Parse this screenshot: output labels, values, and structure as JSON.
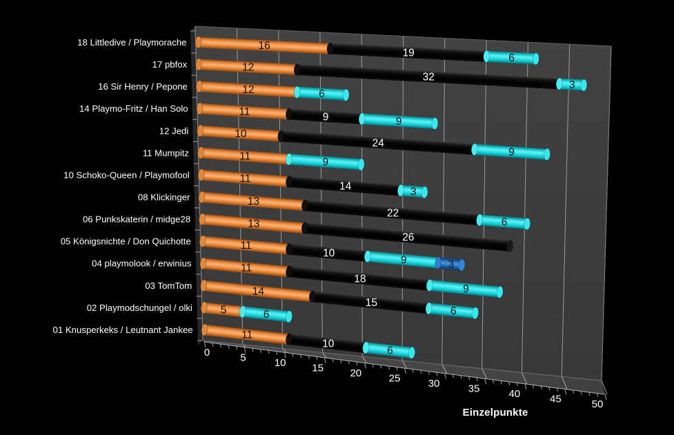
{
  "background": "#000000",
  "colors": {
    "wall": "#3d3d3d",
    "floor": "#474747",
    "gridline": "#a0a0a0",
    "edge_highlight": "#8f8f8f",
    "text": "#ffffff",
    "bar_orange": "#f79646",
    "bar_black": "#070707",
    "bar_cyan": "#2ee3e9",
    "bar_blue": "#2273c8"
  },
  "chart_data": {
    "type": "bar",
    "orientation": "horizontal",
    "stacked": true,
    "style": "3d-cylinder",
    "title": "",
    "xlabel": "Einzelpunkte",
    "ylabel": "",
    "xlim": [
      0,
      50
    ],
    "xticks": [
      0,
      5,
      10,
      15,
      20,
      25,
      30,
      35,
      40,
      45,
      50
    ],
    "minor_tick_step": 1,
    "grid": true,
    "legend": false,
    "categories": [
      "18 Littledive / Playmorache",
      "17 pbfox",
      "16 Sir Henry / Pepone",
      "14 Playmo-Fritz / Han Solo",
      "12 Jedi",
      "11 Mumpitz",
      "10 Schoko-Queen / Playmofool",
      "08 Klickinger",
      "06 Punkskaterin / midge28",
      "05 Königsnichte / Don Quichotte",
      "04 playmolook / erwinius",
      "03 TomTom",
      "02 Playmodschungel / olki",
      "01 Knusperkeks / Leutnant Jankee"
    ],
    "series": [
      {
        "name": "segment-1",
        "color": "orange",
        "label_color": "#101010",
        "values": [
          16,
          12,
          12,
          11,
          10,
          11,
          11,
          13,
          13,
          11,
          11,
          14,
          5,
          11
        ]
      },
      {
        "name": "segment-2",
        "color": "black",
        "label_color": "#ffffff",
        "values": [
          19,
          32,
          0,
          9,
          24,
          0,
          14,
          22,
          26,
          10,
          18,
          15,
          0,
          10
        ]
      },
      {
        "name": "segment-3",
        "color": "cyan",
        "label_color": "#101010",
        "values": [
          6,
          3,
          6,
          9,
          9,
          9,
          3,
          6,
          0,
          9,
          9,
          6,
          6,
          6
        ]
      },
      {
        "name": "segment-4",
        "color": "blue",
        "label_color": "#06172e",
        "values": [
          0,
          0,
          0,
          0,
          0,
          0,
          0,
          0,
          0,
          3,
          0,
          0,
          0,
          0
        ]
      }
    ]
  }
}
